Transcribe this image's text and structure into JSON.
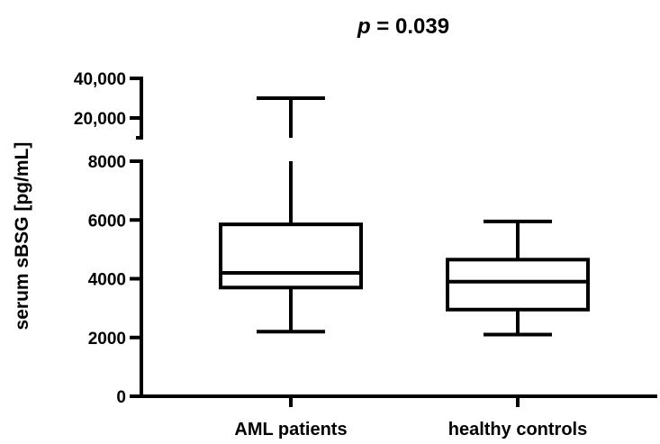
{
  "chart_data": {
    "type": "box",
    "title_prefix": "p",
    "title_suffix": " = 0.039",
    "ylabel": "serum sBSG [pg/mL]",
    "y_axis": {
      "broken": true,
      "lower_segment": {
        "range": [
          0,
          8000
        ],
        "ticks": [
          0,
          2000,
          4000,
          6000,
          8000
        ],
        "tick_labels": [
          "0",
          "2000",
          "4000",
          "6000",
          "8000"
        ]
      },
      "upper_segment": {
        "range": [
          10000,
          40000
        ],
        "ticks": [
          20000,
          40000
        ],
        "tick_labels": [
          "20,000",
          "40,000"
        ]
      }
    },
    "categories": [
      "AML patients",
      "healthy controls"
    ],
    "boxes": [
      {
        "name": "AML patients",
        "min": 2200,
        "q1": 3700,
        "median": 4200,
        "q3": 5850,
        "max": 30000
      },
      {
        "name": "healthy controls",
        "min": 2100,
        "q1": 2950,
        "median": 3900,
        "q3": 4650,
        "max": 5950
      }
    ],
    "color": "#000000"
  }
}
